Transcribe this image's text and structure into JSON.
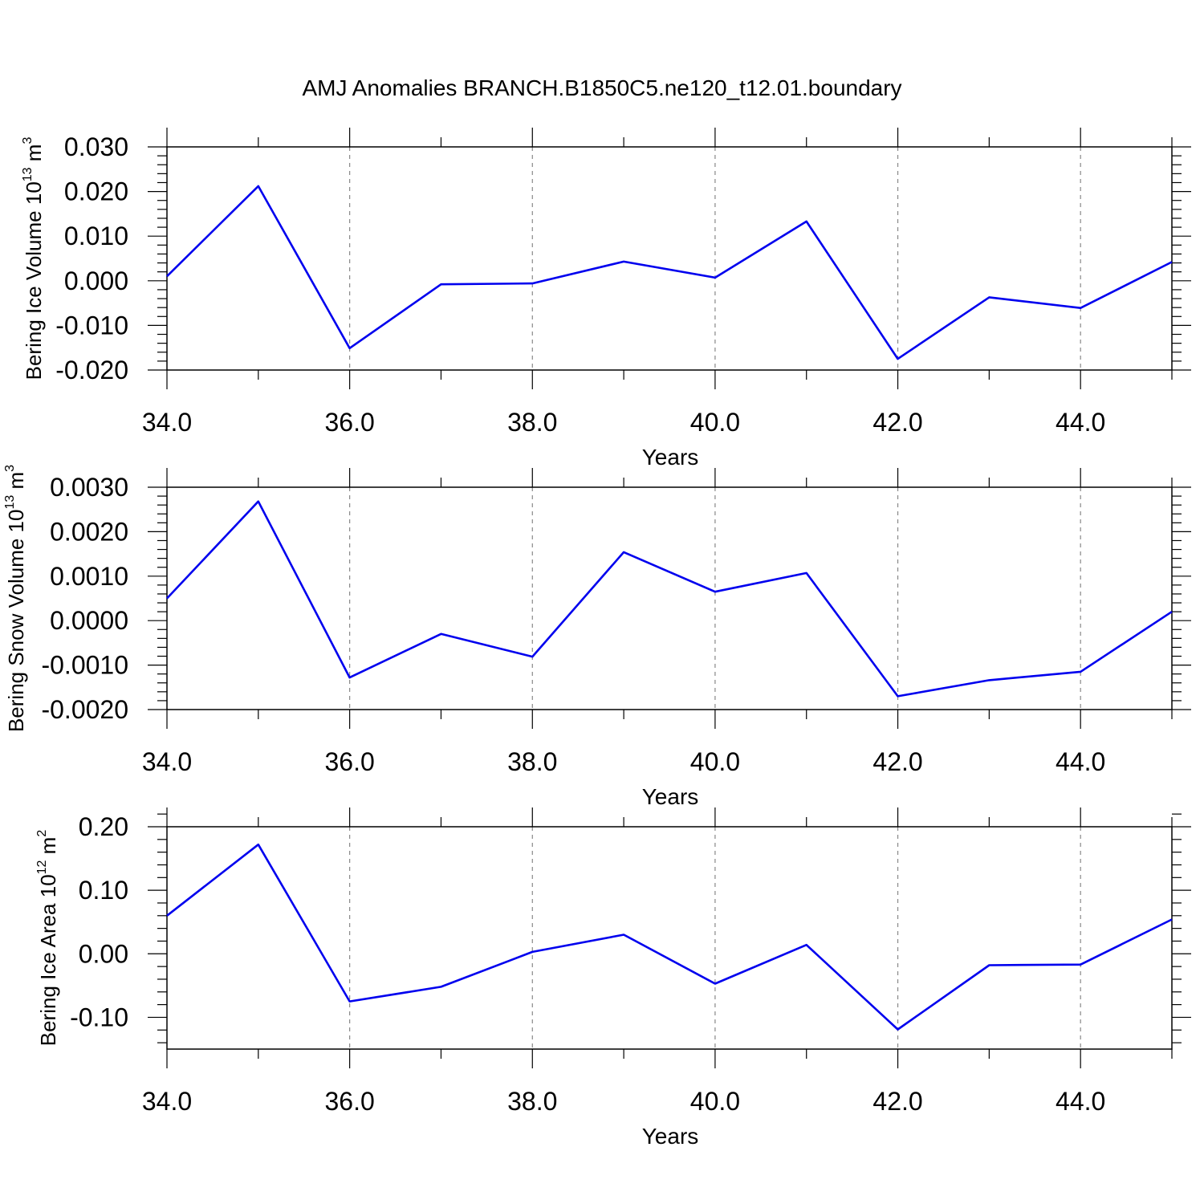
{
  "title": "AMJ Anomalies BRANCH.B1850C5.ne120_t12.01.boundary",
  "line_color": "#0000ee",
  "chart_data": [
    {
      "type": "line",
      "ylabel_parts": [
        "Bering Ice Volume 10",
        "13",
        " m",
        "3"
      ],
      "xlabel": "Years",
      "xlim": [
        34,
        45
      ],
      "ylim": [
        -0.02,
        0.03
      ],
      "x_ticks": [
        34,
        36,
        38,
        40,
        42,
        44
      ],
      "x_tick_labels": [
        "34.0",
        "36.0",
        "38.0",
        "40.0",
        "42.0",
        "44.0"
      ],
      "y_ticks": [
        -0.02,
        -0.01,
        0.0,
        0.01,
        0.02,
        0.03
      ],
      "y_tick_labels": [
        "-0.020",
        "-0.010",
        "0.000",
        "0.010",
        "0.020",
        "0.030"
      ],
      "grid": "vertical dashed at major x ticks",
      "series": [
        {
          "x": [
            34,
            35,
            36,
            37,
            38,
            39,
            40,
            41,
            42,
            43,
            44,
            45
          ],
          "values": [
            0.001,
            0.0212,
            -0.0151,
            -0.0008,
            -0.0006,
            0.0043,
            0.0007,
            0.0133,
            -0.0175,
            -0.0037,
            -0.0061,
            0.0042
          ]
        }
      ]
    },
    {
      "type": "line",
      "ylabel_parts": [
        "Bering Snow Volume 10",
        "13",
        " m",
        "3"
      ],
      "xlabel": "Years",
      "xlim": [
        34,
        45
      ],
      "ylim": [
        -0.002,
        0.003
      ],
      "x_ticks": [
        34,
        36,
        38,
        40,
        42,
        44
      ],
      "x_tick_labels": [
        "34.0",
        "36.0",
        "38.0",
        "40.0",
        "42.0",
        "44.0"
      ],
      "y_ticks": [
        -0.002,
        -0.001,
        0.0,
        0.001,
        0.002,
        0.003
      ],
      "y_tick_labels": [
        "-0.0020",
        "-0.0010",
        "0.0000",
        "0.0010",
        "0.0020",
        "0.0030"
      ],
      "grid": "vertical dashed at major x ticks",
      "series": [
        {
          "x": [
            34,
            35,
            36,
            37,
            38,
            39,
            40,
            41,
            42,
            43,
            44,
            45
          ],
          "values": [
            0.0005,
            0.00268,
            -0.00128,
            -0.0003,
            -0.00081,
            0.00154,
            0.00065,
            0.00107,
            -0.0017,
            -0.00134,
            -0.00115,
            0.0002
          ]
        }
      ]
    },
    {
      "type": "line",
      "ylabel_parts": [
        "Bering Ice Area 10",
        "12",
        " m",
        "2"
      ],
      "xlabel": "Years",
      "xlim": [
        34,
        45
      ],
      "ylim": [
        -0.15,
        0.2
      ],
      "x_ticks": [
        34,
        36,
        38,
        40,
        42,
        44
      ],
      "x_tick_labels": [
        "34.0",
        "36.0",
        "38.0",
        "40.0",
        "42.0",
        "44.0"
      ],
      "y_ticks": [
        -0.1,
        0.0,
        0.1,
        0.2
      ],
      "y_tick_labels": [
        "-0.10",
        "0.00",
        "0.10",
        "0.20"
      ],
      "grid": "vertical dashed at major x ticks",
      "series": [
        {
          "x": [
            34,
            35,
            36,
            37,
            38,
            39,
            40,
            41,
            42,
            43,
            44,
            45
          ],
          "values": [
            0.06,
            0.172,
            -0.075,
            -0.052,
            0.003,
            0.03,
            -0.047,
            0.014,
            -0.119,
            -0.018,
            -0.017,
            0.054
          ]
        }
      ]
    }
  ]
}
